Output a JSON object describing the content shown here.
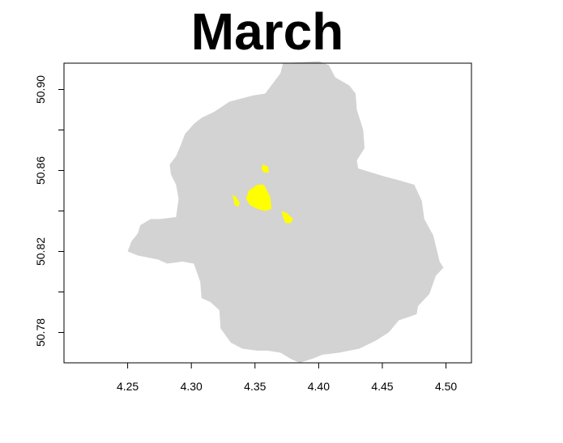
{
  "title": "March",
  "colors": {
    "region_fill": "#d3d3d3",
    "highlight_fill": "#ffff00",
    "frame": "#000000"
  },
  "x_axis": {
    "range": [
      4.2,
      4.52
    ],
    "ticks": [
      {
        "value": 4.25,
        "label": "4.25"
      },
      {
        "value": 4.3,
        "label": "4.30"
      },
      {
        "value": 4.35,
        "label": "4.35"
      },
      {
        "value": 4.4,
        "label": "4.40"
      },
      {
        "value": 4.45,
        "label": "4.45"
      },
      {
        "value": 4.5,
        "label": "4.50"
      }
    ]
  },
  "y_axis": {
    "range": [
      50.765,
      50.913
    ],
    "ticks": [
      {
        "value": 50.78,
        "label": "50.78"
      },
      {
        "value": 50.8,
        "label": ""
      },
      {
        "value": 50.82,
        "label": "50.82"
      },
      {
        "value": 50.84,
        "label": ""
      },
      {
        "value": 50.86,
        "label": "50.86"
      },
      {
        "value": 50.88,
        "label": ""
      },
      {
        "value": 50.9,
        "label": "50.90"
      }
    ]
  },
  "region_outline": [
    [
      4.372,
      50.913
    ],
    [
      4.4,
      50.914
    ],
    [
      4.408,
      50.912
    ],
    [
      4.413,
      50.906
    ],
    [
      4.424,
      50.902
    ],
    [
      4.429,
      50.898
    ],
    [
      4.43,
      50.89
    ],
    [
      4.435,
      50.88
    ],
    [
      4.436,
      50.871
    ],
    [
      4.43,
      50.865
    ],
    [
      4.431,
      50.861
    ],
    [
      4.452,
      50.857
    ],
    [
      4.464,
      50.855
    ],
    [
      4.475,
      50.853
    ],
    [
      4.481,
      50.845
    ],
    [
      4.483,
      50.836
    ],
    [
      4.49,
      50.828
    ],
    [
      4.495,
      50.815
    ],
    [
      4.498,
      50.812
    ],
    [
      4.492,
      50.808
    ],
    [
      4.487,
      50.799
    ],
    [
      4.478,
      50.793
    ],
    [
      4.477,
      50.789
    ],
    [
      4.463,
      50.786
    ],
    [
      4.455,
      50.78
    ],
    [
      4.445,
      50.776
    ],
    [
      4.432,
      50.772
    ],
    [
      4.416,
      50.77
    ],
    [
      4.403,
      50.769
    ],
    [
      4.395,
      50.767
    ],
    [
      4.385,
      50.765
    ],
    [
      4.378,
      50.767
    ],
    [
      4.37,
      50.77
    ],
    [
      4.36,
      50.771
    ],
    [
      4.352,
      50.771
    ],
    [
      4.34,
      50.772
    ],
    [
      4.331,
      50.775
    ],
    [
      4.323,
      50.782
    ],
    [
      4.322,
      50.791
    ],
    [
      4.315,
      50.795
    ],
    [
      4.308,
      50.797
    ],
    [
      4.307,
      50.805
    ],
    [
      4.302,
      50.814
    ],
    [
      4.293,
      50.815
    ],
    [
      4.281,
      50.814
    ],
    [
      4.274,
      50.816
    ],
    [
      4.258,
      50.818
    ],
    [
      4.25,
      50.82
    ],
    [
      4.253,
      50.825
    ],
    [
      4.258,
      50.829
    ],
    [
      4.26,
      50.833
    ],
    [
      4.268,
      50.836
    ],
    [
      4.275,
      50.836
    ],
    [
      4.288,
      50.837
    ],
    [
      4.29,
      50.846
    ],
    [
      4.288,
      50.853
    ],
    [
      4.284,
      50.858
    ],
    [
      4.283,
      50.863
    ],
    [
      4.288,
      50.867
    ],
    [
      4.292,
      50.873
    ],
    [
      4.295,
      50.878
    ],
    [
      4.302,
      50.883
    ],
    [
      4.308,
      50.886
    ],
    [
      4.318,
      50.889
    ],
    [
      4.33,
      50.894
    ],
    [
      4.348,
      50.897
    ],
    [
      4.358,
      50.898
    ],
    [
      4.364,
      50.903
    ],
    [
      4.37,
      50.908
    ]
  ],
  "highlight_areas": [
    [
      [
        4.345,
        50.85
      ],
      [
        4.352,
        50.853
      ],
      [
        4.357,
        50.853
      ],
      [
        4.362,
        50.847
      ],
      [
        4.363,
        50.841
      ],
      [
        4.358,
        50.84
      ],
      [
        4.352,
        50.841
      ],
      [
        4.346,
        50.843
      ],
      [
        4.343,
        50.846
      ]
    ],
    [
      [
        4.356,
        50.863
      ],
      [
        4.36,
        50.862
      ],
      [
        4.361,
        50.859
      ],
      [
        4.357,
        50.859
      ],
      [
        4.355,
        50.861
      ]
    ],
    [
      [
        4.332,
        50.848
      ],
      [
        4.335,
        50.847
      ],
      [
        4.338,
        50.844
      ],
      [
        4.337,
        50.842
      ],
      [
        4.334,
        50.843
      ],
      [
        4.333,
        50.846
      ]
    ],
    [
      [
        4.371,
        50.84
      ],
      [
        4.375,
        50.839
      ],
      [
        4.38,
        50.836
      ],
      [
        4.378,
        50.834
      ],
      [
        4.374,
        50.834
      ],
      [
        4.372,
        50.837
      ]
    ]
  ]
}
